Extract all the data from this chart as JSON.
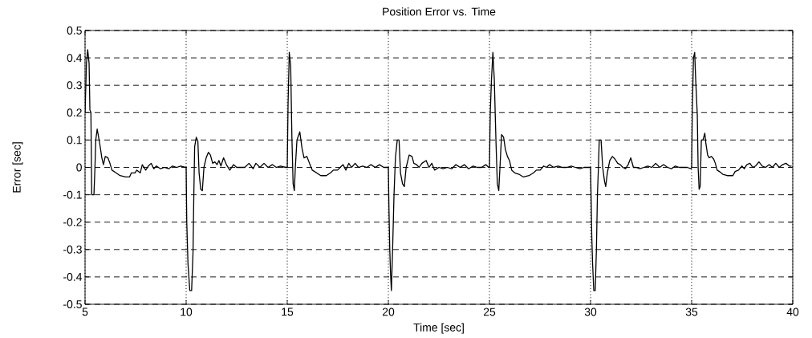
{
  "chart_data": {
    "type": "line",
    "title": "Position Error vs. Time",
    "xlabel": "Time [sec]",
    "ylabel": "Error [sec]",
    "xlim": [
      5,
      40
    ],
    "ylim": [
      -0.5,
      0.5
    ],
    "xticks": [
      5,
      10,
      15,
      20,
      25,
      30,
      35,
      40
    ],
    "yticks": [
      -0.5,
      -0.4,
      -0.3,
      -0.2,
      -0.1,
      0,
      0.1,
      0.2,
      0.3,
      0.4,
      0.5
    ],
    "grid": true,
    "color": "#000000",
    "x": [
      5.0,
      5.07,
      5.13,
      5.2,
      5.24,
      5.29,
      5.33,
      5.44,
      5.49,
      5.53,
      5.6,
      5.67,
      5.73,
      5.83,
      5.91,
      6.0,
      6.13,
      6.23,
      6.33,
      6.53,
      6.73,
      7.0,
      7.2,
      7.29,
      7.47,
      7.56,
      7.73,
      7.83,
      8.0,
      8.13,
      8.27,
      8.4,
      8.53,
      8.73,
      8.93,
      9.13,
      9.33,
      9.53,
      9.73,
      9.96,
      10.0,
      10.03,
      10.09,
      10.18,
      10.27,
      10.34,
      10.38,
      10.42,
      10.5,
      10.58,
      10.64,
      10.72,
      10.8,
      10.88,
      10.99,
      11.1,
      11.2,
      11.31,
      11.42,
      11.53,
      11.62,
      11.72,
      11.85,
      11.99,
      12.16,
      12.34,
      12.5,
      12.7,
      12.9,
      13.11,
      13.31,
      13.45,
      13.65,
      13.85,
      14.05,
      14.26,
      14.46,
      14.66,
      14.93,
      15.0,
      15.04,
      15.1,
      15.17,
      15.23,
      15.29,
      15.35,
      15.4,
      15.48,
      15.62,
      15.73,
      15.83,
      15.97,
      16.1,
      16.24,
      16.45,
      16.66,
      16.93,
      17.14,
      17.28,
      17.49,
      17.62,
      17.76,
      17.9,
      18.04,
      18.18,
      18.36,
      18.52,
      18.73,
      18.94,
      19.14,
      19.35,
      19.56,
      19.77,
      19.97,
      20.0,
      20.03,
      20.07,
      20.11,
      20.15,
      20.21,
      20.28,
      20.35,
      20.44,
      20.53,
      20.6,
      20.7,
      20.79,
      20.88,
      21.03,
      21.17,
      21.26,
      21.4,
      21.52,
      21.66,
      21.87,
      22.01,
      22.15,
      22.29,
      22.5,
      22.71,
      22.92,
      23.13,
      23.34,
      23.55,
      23.76,
      23.97,
      24.19,
      24.4,
      24.61,
      24.82,
      24.96,
      25.0,
      25.04,
      25.1,
      25.17,
      25.24,
      25.32,
      25.39,
      25.46,
      25.53,
      25.6,
      25.7,
      25.79,
      25.89,
      25.99,
      26.1,
      26.25,
      26.46,
      26.68,
      26.96,
      27.18,
      27.32,
      27.51,
      27.68,
      27.82,
      27.97,
      28.18,
      28.4,
      28.61,
      28.83,
      29.04,
      29.25,
      29.47,
      29.68,
      29.97,
      30.0,
      30.03,
      30.06,
      30.1,
      30.16,
      30.23,
      30.29,
      30.34,
      30.39,
      30.43,
      30.52,
      30.6,
      30.69,
      30.75,
      30.83,
      30.95,
      31.08,
      31.21,
      31.34,
      31.47,
      31.6,
      31.73,
      31.86,
      31.99,
      32.12,
      32.25,
      32.44,
      32.64,
      32.83,
      33.03,
      33.22,
      33.42,
      33.61,
      33.81,
      34.0,
      34.19,
      34.39,
      34.58,
      34.78,
      34.97,
      35.0,
      35.03,
      35.09,
      35.15,
      35.2,
      35.28,
      35.32,
      35.37,
      35.42,
      35.48,
      35.56,
      35.65,
      35.7,
      35.79,
      35.87,
      35.98,
      36.09,
      36.17,
      36.26,
      36.37,
      36.54,
      36.76,
      37.04,
      37.15,
      37.32,
      37.49,
      37.6,
      37.73,
      37.88,
      38.02,
      38.16,
      38.33,
      38.49,
      38.66,
      38.83,
      39.0,
      39.16,
      39.33,
      39.5,
      39.66,
      39.83,
      39.94
    ],
    "values": [
      0.2,
      0.38,
      0.43,
      0.38,
      0.21,
      0.2,
      -0.1,
      -0.1,
      0.0,
      0.1,
      0.14,
      0.11,
      0.085,
      0.035,
      0.01,
      0.04,
      0.035,
      0.015,
      -0.01,
      -0.02,
      -0.03,
      -0.035,
      -0.035,
      -0.02,
      -0.02,
      -0.01,
      -0.02,
      0.01,
      -0.01,
      0.005,
      0.015,
      -0.005,
      0.005,
      -0.005,
      0.0,
      -0.005,
      0.005,
      0.0,
      0.005,
      0.0,
      0.0,
      -0.2,
      -0.35,
      -0.45,
      -0.45,
      -0.31,
      -0.1,
      0.075,
      0.11,
      0.095,
      -0.02,
      -0.08,
      -0.085,
      0.0,
      0.035,
      0.055,
      0.045,
      0.015,
      0.02,
      0.01,
      0.025,
      0.005,
      0.035,
      0.01,
      -0.01,
      0.01,
      0.0,
      0.0,
      0.0,
      0.015,
      -0.005,
      0.015,
      0.0,
      0.015,
      0.0,
      0.01,
      0.0,
      0.005,
      0.0,
      0.0,
      0.23,
      0.42,
      0.37,
      0.11,
      -0.06,
      -0.085,
      0.0,
      0.1,
      0.13,
      0.07,
      0.035,
      0.04,
      0.015,
      -0.01,
      -0.02,
      -0.03,
      -0.03,
      -0.02,
      -0.01,
      -0.01,
      0.0,
      0.01,
      -0.01,
      0.015,
      0.0,
      0.015,
      0.0,
      0.005,
      0.0,
      0.01,
      0.0,
      0.01,
      0.0,
      0.0,
      0.0,
      -0.15,
      -0.3,
      -0.39,
      -0.45,
      -0.3,
      -0.1,
      0.035,
      0.1,
      0.1,
      -0.02,
      -0.06,
      -0.07,
      0.0,
      0.045,
      0.04,
      0.015,
      0.01,
      0.0,
      0.015,
      0.025,
      0.0,
      0.015,
      -0.01,
      0.0,
      -0.005,
      0.0,
      -0.005,
      0.01,
      0.0,
      0.01,
      -0.005,
      0.005,
      0.0,
      0.0,
      0.01,
      0.0,
      0.0,
      0.2,
      0.32,
      0.42,
      0.32,
      0.1,
      -0.06,
      -0.085,
      0.015,
      0.12,
      0.11,
      0.065,
      0.04,
      0.025,
      -0.01,
      -0.02,
      -0.025,
      -0.035,
      -0.03,
      -0.02,
      -0.01,
      -0.01,
      0.005,
      0.0,
      0.01,
      0.0,
      0.005,
      0.0,
      0.0,
      0.005,
      0.0,
      -0.005,
      0.0,
      0.0,
      0.0,
      -0.12,
      -0.25,
      -0.35,
      -0.45,
      -0.45,
      -0.3,
      -0.1,
      0.0,
      0.1,
      0.1,
      0.0,
      -0.05,
      -0.07,
      -0.02,
      0.025,
      0.04,
      0.03,
      0.015,
      0.01,
      0.0,
      -0.005,
      0.01,
      0.035,
      0.0,
      0.0,
      -0.005,
      0.0,
      0.005,
      0.0,
      0.015,
      0.0,
      0.01,
      0.0,
      -0.005,
      0.005,
      0.0,
      0.0,
      0.0,
      -0.005,
      0.0,
      0.2,
      0.4,
      0.42,
      0.32,
      0.19,
      0.0,
      -0.08,
      -0.07,
      0.1,
      0.1,
      0.125,
      0.09,
      0.045,
      0.035,
      0.04,
      0.03,
      0.015,
      -0.01,
      -0.015,
      -0.025,
      -0.03,
      -0.03,
      -0.015,
      -0.01,
      0.005,
      -0.005,
      0.01,
      0.015,
      0.0,
      0.005,
      0.02,
      0.005,
      0.0,
      0.01,
      0.0,
      0.015,
      0.0,
      0.01,
      0.015,
      0.005,
      0.005
    ]
  }
}
